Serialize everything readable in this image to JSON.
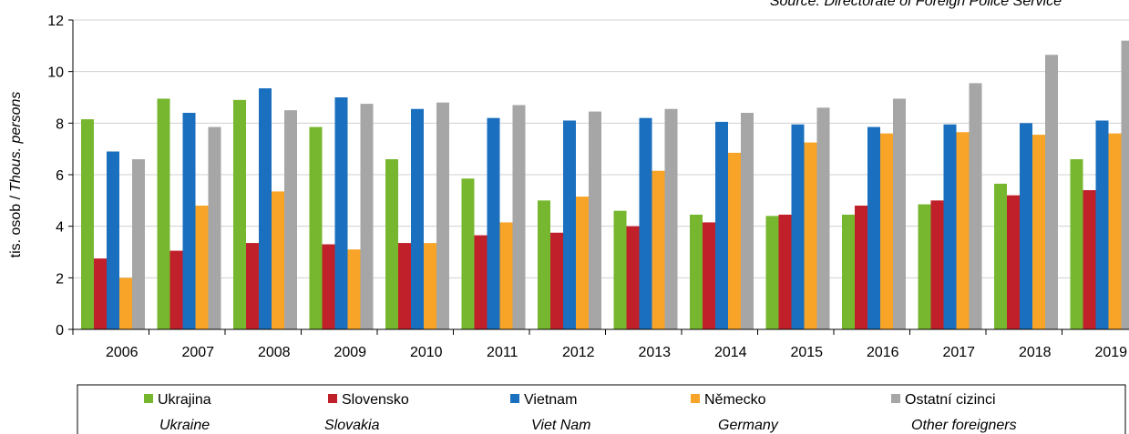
{
  "chart_data": {
    "type": "bar",
    "source": "Source: Directorate of Foreign Police Service",
    "ylabel": "tis. osob /",
    "ylabel_en": "Thous. persons",
    "categories": [
      "2006",
      "2007",
      "2008",
      "2009",
      "2010",
      "2011",
      "2012",
      "2013",
      "2014",
      "2015",
      "2016",
      "2017",
      "2018",
      "2019"
    ],
    "series": [
      {
        "name": "Ukrajina",
        "name_en": "Ukraine",
        "color": "#77b72f",
        "values": [
          8.15,
          8.95,
          8.9,
          7.85,
          6.6,
          5.85,
          5.0,
          4.6,
          4.45,
          4.4,
          4.45,
          4.85,
          5.65,
          6.6
        ]
      },
      {
        "name": "Slovensko",
        "name_en": "Slovakia",
        "color": "#c0202a",
        "values": [
          2.75,
          3.05,
          3.35,
          3.3,
          3.35,
          3.65,
          3.75,
          4.0,
          4.15,
          4.45,
          4.8,
          5.0,
          5.2,
          5.4
        ]
      },
      {
        "name": "Vietnam",
        "name_en": "Viet Nam",
        "color": "#1a6fbf",
        "values": [
          6.9,
          8.4,
          9.35,
          9.0,
          8.55,
          8.2,
          8.1,
          8.2,
          8.05,
          7.95,
          7.85,
          7.95,
          8.0,
          8.1
        ]
      },
      {
        "name": "Německo",
        "name_en": "Germany",
        "color": "#f7a428",
        "values": [
          2.0,
          4.8,
          5.35,
          3.1,
          3.35,
          4.15,
          5.15,
          6.15,
          6.85,
          7.25,
          7.6,
          7.65,
          7.55,
          7.6
        ]
      },
      {
        "name": "Ostatní cizinci",
        "name_en": "Other foreigners",
        "color": "#a6a6a6",
        "values": [
          6.6,
          7.85,
          8.5,
          8.75,
          8.8,
          8.7,
          8.45,
          8.55,
          8.4,
          8.6,
          8.95,
          9.55,
          10.65,
          11.2
        ]
      }
    ],
    "ylim": [
      0,
      12
    ],
    "yticks": [
      0,
      2,
      4,
      6,
      8,
      10,
      12
    ],
    "grid": true
  }
}
